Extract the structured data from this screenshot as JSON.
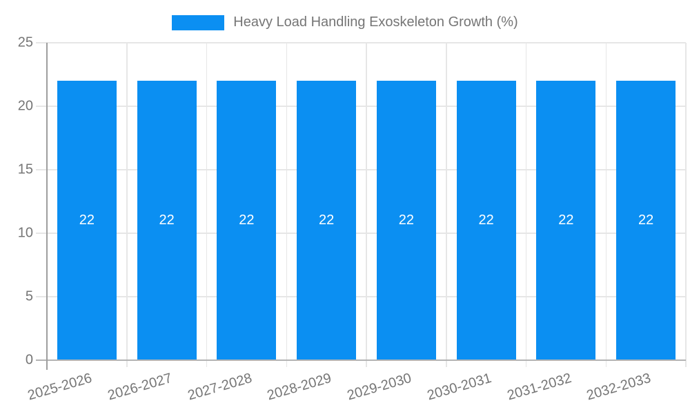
{
  "chart_data": {
    "type": "bar",
    "title": "Heavy Load Handling Exoskeleton Growth (%)",
    "xlabel": "",
    "ylabel": "",
    "categories": [
      "2025-2026",
      "2026-2027",
      "2027-2028",
      "2028-2029",
      "2029-2030",
      "2030-2031",
      "2031-2032",
      "2032-2033"
    ],
    "values": [
      22,
      22,
      22,
      22,
      22,
      22,
      22,
      22
    ],
    "bar_value_labels": [
      "22",
      "22",
      "22",
      "22",
      "22",
      "22",
      "22",
      "22"
    ],
    "ylim": [
      0,
      25
    ],
    "yticks": [
      0,
      5,
      10,
      15,
      20,
      25
    ],
    "grid": true,
    "legend_position": "top",
    "colors": {
      "bar": "#0b8ff2",
      "bar_label": "#ffffff",
      "axis_text": "#757575",
      "gridline": "#e6e6e6",
      "axis_line": "#9e9e9e",
      "baseline": "#b3b3b3",
      "background": "#ffffff"
    }
  }
}
